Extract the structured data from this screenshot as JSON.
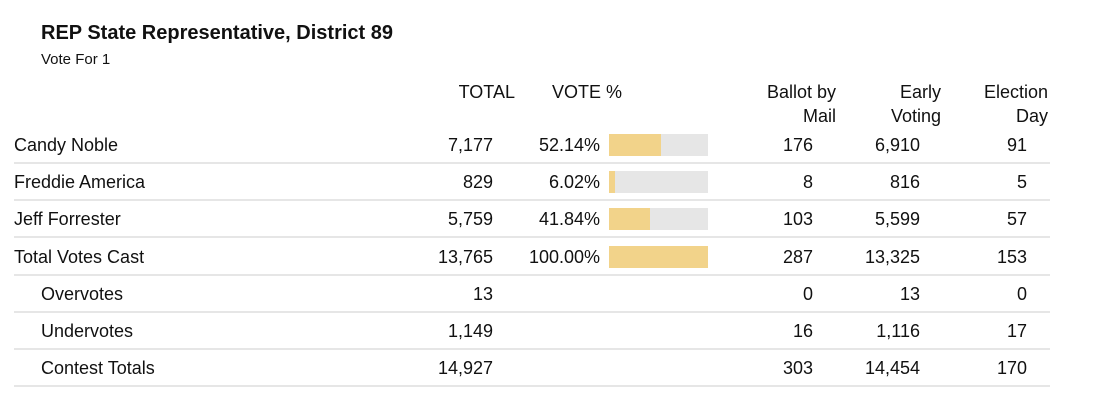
{
  "header": {
    "title": "REP State Representative, District 89",
    "subtitle": "Vote For 1"
  },
  "table": {
    "columns": {
      "total": "TOTAL",
      "vote_pct": "VOTE %",
      "mail": [
        "Ballot by",
        "Mail"
      ],
      "early": [
        "Early",
        "Voting"
      ],
      "day": [
        "Election",
        "Day"
      ]
    },
    "rows": [
      {
        "name": "Candy Noble",
        "total": "7,177",
        "vote_pct": {
          "value": 52.14,
          "label": "52.14%"
        },
        "mail": "176",
        "early": "6,910",
        "day": "91"
      },
      {
        "name": "Freddie America",
        "total": "829",
        "vote_pct": {
          "value": 6.02,
          "label": "6.02%"
        },
        "mail": "8",
        "early": "816",
        "day": "5"
      },
      {
        "name": "Jeff Forrester",
        "total": "5,759",
        "vote_pct": {
          "value": 41.84,
          "label": "41.84%"
        },
        "mail": "103",
        "early": "5,599",
        "day": "57"
      },
      {
        "name": "Total Votes Cast",
        "total": "13,765",
        "vote_pct": {
          "value": 100,
          "label": "100.00%"
        },
        "mail": "287",
        "early": "13,325",
        "day": "153"
      },
      {
        "name": "Overvotes",
        "total": "13",
        "mail": "0",
        "early": "13",
        "day": "0"
      },
      {
        "name": "Undervotes",
        "total": "1,149",
        "mail": "16",
        "early": "1,116",
        "day": "17"
      },
      {
        "name": "Contest Totals",
        "total": "14,927",
        "mail": "303",
        "early": "14,454",
        "day": "170"
      }
    ]
  }
}
